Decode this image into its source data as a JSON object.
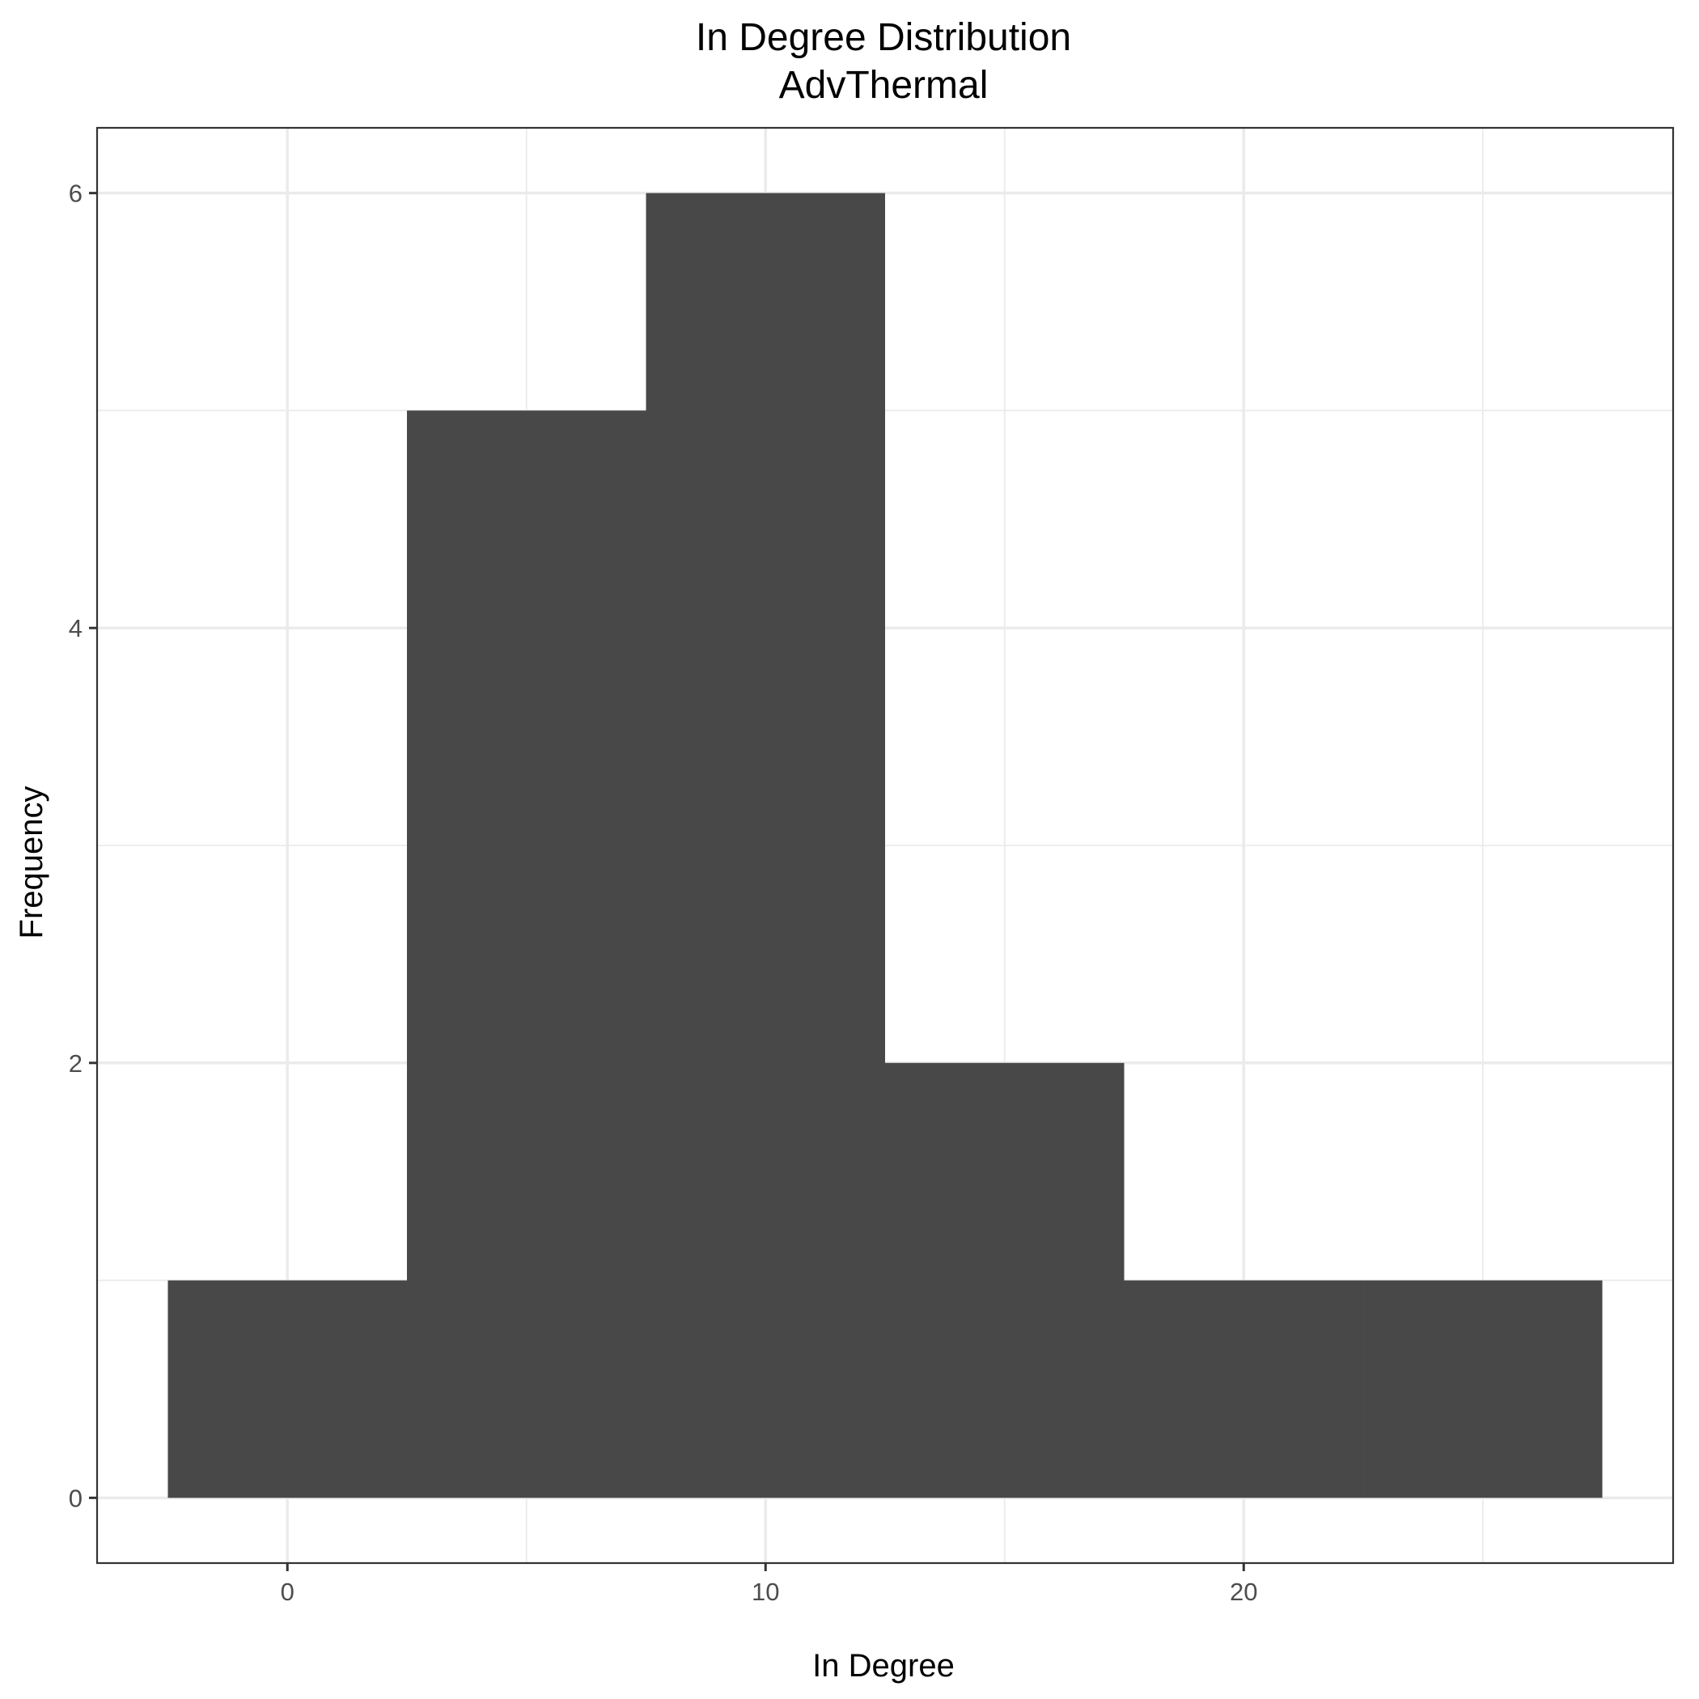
{
  "chart_data": {
    "type": "bar",
    "title": "In Degree Distribution",
    "subtitle": "AdvThermal",
    "xlabel": "In Degree",
    "ylabel": "Frequency",
    "bins": [
      {
        "x_start": -2.5,
        "x_end": 2.5,
        "count": 1
      },
      {
        "x_start": 2.5,
        "x_end": 7.5,
        "count": 5
      },
      {
        "x_start": 7.5,
        "x_end": 12.5,
        "count": 6
      },
      {
        "x_start": 12.5,
        "x_end": 17.5,
        "count": 2
      },
      {
        "x_start": 17.5,
        "x_end": 22.5,
        "count": 1
      },
      {
        "x_start": 22.5,
        "x_end": 27.5,
        "count": 1
      }
    ],
    "x_ticks": [
      0,
      10,
      20
    ],
    "x_tick_labels": [
      "0",
      "10",
      "20"
    ],
    "y_ticks": [
      0,
      2,
      4,
      6
    ],
    "y_tick_labels": [
      "0",
      "2",
      "4",
      "6"
    ],
    "xlim": [
      -3.98,
      28.98
    ],
    "ylim": [
      -0.3,
      6.3
    ],
    "bar_color": "#484848",
    "panel_background": "#ffffff",
    "grid": true
  }
}
